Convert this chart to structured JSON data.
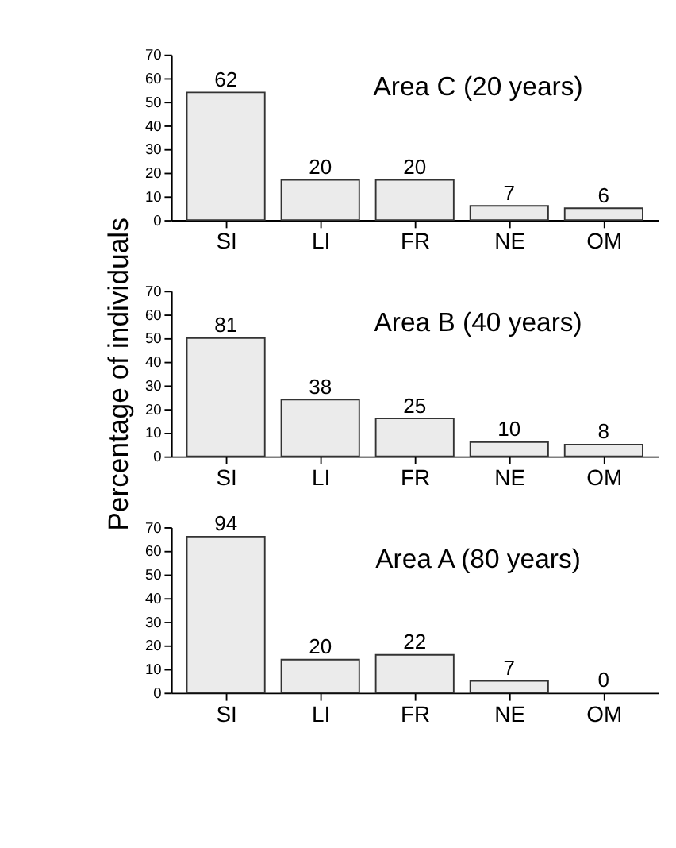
{
  "chart_data": [
    {
      "type": "bar",
      "title": "Area C (20 years)",
      "categories": [
        "SI",
        "LI",
        "FR",
        "NE",
        "OM"
      ],
      "values": [
        54,
        17,
        17,
        6,
        5
      ],
      "color": "#ebebeb",
      "ylim": [
        0,
        70
      ],
      "yticks": [
        0,
        10,
        20,
        30,
        40,
        50,
        60,
        70
      ],
      "grid": false,
      "annotations": [
        {
          "text": "62",
          "x": "SI",
          "y": 54
        },
        {
          "text": "20",
          "x": "LI",
          "y": 17
        },
        {
          "text": "20",
          "x": "FR",
          "y": 17
        },
        {
          "text": "7",
          "x": "NE",
          "y": 6
        },
        {
          "text": "6",
          "x": "OM",
          "y": 5
        }
      ]
    },
    {
      "type": "bar",
      "title": "Area B (40 years)",
      "ylabel": "Percentage of individuals",
      "categories": [
        "SI",
        "LI",
        "FR",
        "NE",
        "OM"
      ],
      "values": [
        50,
        24,
        16,
        6,
        5
      ],
      "color": "#ebebeb",
      "ylim": [
        0,
        70
      ],
      "yticks": [
        0,
        10,
        20,
        30,
        40,
        50,
        60,
        70
      ],
      "grid": false,
      "annotations": [
        {
          "text": "81",
          "x": "SI",
          "y": 50
        },
        {
          "text": "38",
          "x": "LI",
          "y": 24
        },
        {
          "text": "25",
          "x": "FR",
          "y": 16
        },
        {
          "text": "10",
          "x": "NE",
          "y": 6
        },
        {
          "text": "8",
          "x": "OM",
          "y": 5
        }
      ]
    },
    {
      "type": "bar",
      "title": "Area A (80 years)",
      "categories": [
        "SI",
        "LI",
        "FR",
        "NE",
        "OM"
      ],
      "values": [
        66,
        14,
        16,
        5,
        0
      ],
      "color": "#ebebeb",
      "ylim": [
        0,
        70
      ],
      "yticks": [
        0,
        10,
        20,
        30,
        40,
        50,
        60,
        70
      ],
      "grid": false,
      "annotations": [
        {
          "text": "94",
          "x": "SI",
          "y": 66
        },
        {
          "text": "20",
          "x": "LI",
          "y": 14
        },
        {
          "text": "22",
          "x": "FR",
          "y": 16
        },
        {
          "text": "7",
          "x": "NE",
          "y": 5
        },
        {
          "text": "0",
          "x": "OM",
          "y": 0
        }
      ]
    }
  ]
}
